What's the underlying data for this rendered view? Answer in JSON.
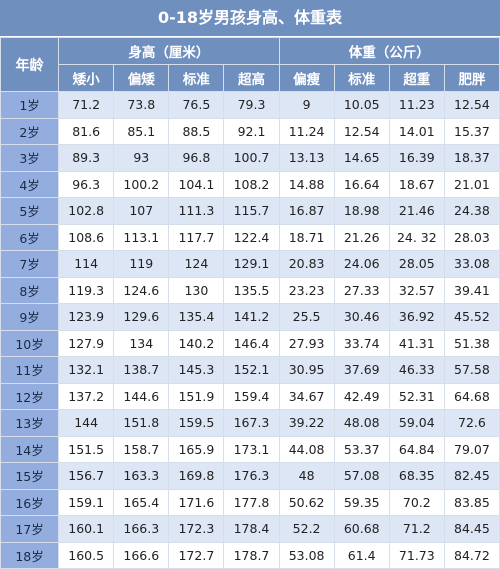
{
  "title": "0-18岁男孩身高、体重表",
  "headers": {
    "age": "年龄",
    "height_group": "身高（厘米）",
    "weight_group": "体重（公斤）",
    "height_cols": [
      "矮小",
      "偏矮",
      "标准",
      "超高"
    ],
    "weight_cols": [
      "偏瘦",
      "标准",
      "超重",
      "肥胖"
    ]
  },
  "rows": [
    {
      "age": "1岁",
      "h": [
        "71.2",
        "73.8",
        "76.5",
        "79.3"
      ],
      "w": [
        "9",
        "10.05",
        "11.23",
        "12.54"
      ]
    },
    {
      "age": "2岁",
      "h": [
        "81.6",
        "85.1",
        "88.5",
        "92.1"
      ],
      "w": [
        "11.24",
        "12.54",
        "14.01",
        "15.37"
      ]
    },
    {
      "age": "3岁",
      "h": [
        "89.3",
        "93",
        "96.8",
        "100.7"
      ],
      "w": [
        "13.13",
        "14.65",
        "16.39",
        "18.37"
      ]
    },
    {
      "age": "4岁",
      "h": [
        "96.3",
        "100.2",
        "104.1",
        "108.2"
      ],
      "w": [
        "14.88",
        "16.64",
        "18.67",
        "21.01"
      ]
    },
    {
      "age": "5岁",
      "h": [
        "102.8",
        "107",
        "111.3",
        "115.7"
      ],
      "w": [
        "16.87",
        "18.98",
        "21.46",
        "24.38"
      ]
    },
    {
      "age": "6岁",
      "h": [
        "108.6",
        "113.1",
        "117.7",
        "122.4"
      ],
      "w": [
        "18.71",
        "21.26",
        "24. 32",
        "28.03"
      ]
    },
    {
      "age": "7岁",
      "h": [
        "114",
        "119",
        "124",
        "129.1"
      ],
      "w": [
        "20.83",
        "24.06",
        "28.05",
        "33.08"
      ]
    },
    {
      "age": "8岁",
      "h": [
        "119.3",
        "124.6",
        "130",
        "135.5"
      ],
      "w": [
        "23.23",
        "27.33",
        "32.57",
        "39.41"
      ]
    },
    {
      "age": "9岁",
      "h": [
        "123.9",
        "129.6",
        "135.4",
        "141.2"
      ],
      "w": [
        "25.5",
        "30.46",
        "36.92",
        "45.52"
      ]
    },
    {
      "age": "10岁",
      "h": [
        "127.9",
        "134",
        "140.2",
        "146.4"
      ],
      "w": [
        "27.93",
        "33.74",
        "41.31",
        "51.38"
      ]
    },
    {
      "age": "11岁",
      "h": [
        "132.1",
        "138.7",
        "145.3",
        "152.1"
      ],
      "w": [
        "30.95",
        "37.69",
        "46.33",
        "57.58"
      ]
    },
    {
      "age": "12岁",
      "h": [
        "137.2",
        "144.6",
        "151.9",
        "159.4"
      ],
      "w": [
        "34.67",
        "42.49",
        "52.31",
        "64.68"
      ]
    },
    {
      "age": "13岁",
      "h": [
        "144",
        "151.8",
        "159.5",
        "167.3"
      ],
      "w": [
        "39.22",
        "48.08",
        "59.04",
        "72.6"
      ]
    },
    {
      "age": "14岁",
      "h": [
        "151.5",
        "158.7",
        "165.9",
        "173.1"
      ],
      "w": [
        "44.08",
        "53.37",
        "64.84",
        "79.07"
      ]
    },
    {
      "age": "15岁",
      "h": [
        "156.7",
        "163.3",
        "169.8",
        "176.3"
      ],
      "w": [
        "48",
        "57.08",
        "68.35",
        "82.45"
      ]
    },
    {
      "age": "16岁",
      "h": [
        "159.1",
        "165.4",
        "171.6",
        "177.8"
      ],
      "w": [
        "50.62",
        "59.35",
        "70.2",
        "83.85"
      ]
    },
    {
      "age": "17岁",
      "h": [
        "160.1",
        "166.3",
        "172.3",
        "178.4"
      ],
      "w": [
        "52.2",
        "60.68",
        "71.2",
        "84.45"
      ]
    },
    {
      "age": "18岁",
      "h": [
        "160.5",
        "166.6",
        "172.7",
        "178.7"
      ],
      "w": [
        "53.08",
        "61.4",
        "71.73",
        "84.72"
      ]
    }
  ]
}
